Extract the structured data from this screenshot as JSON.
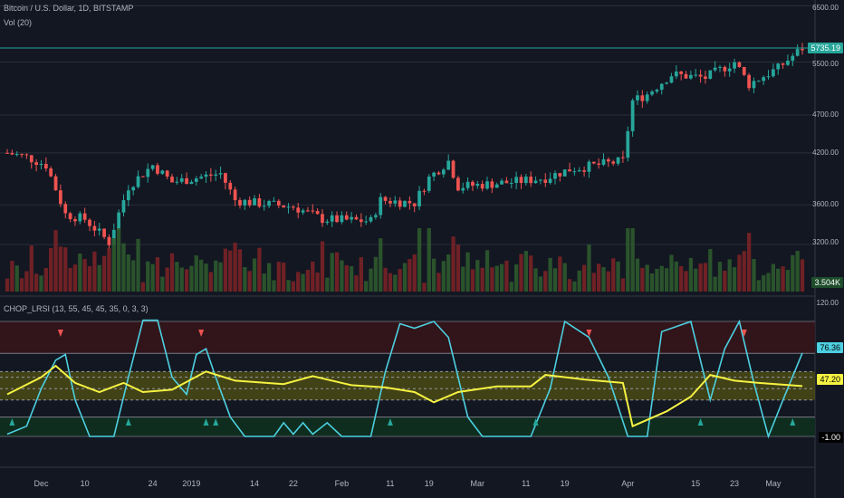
{
  "header": {
    "symbol_title": "Bitcoin / U.S. Dollar, 1D, BITSTAMP",
    "volume_label": "Vol (20)",
    "indicator_label": "CHOP_LRSI (13, 55, 45, 45, 35, 0, 3, 3)"
  },
  "price_axis": {
    "ticks": [
      "6500.00",
      "5500.00",
      "4700.00",
      "4200.00",
      "3600.00",
      "3200.00"
    ],
    "last_price": "5735.19",
    "volume_value": "3.504K"
  },
  "indicator_axis": {
    "ticks": [
      "120.00",
      "-1.00"
    ],
    "cyan_value": "76.36",
    "yellow_value": "47.20"
  },
  "x_axis": {
    "labels": [
      "Dec",
      "10",
      "24",
      "2019",
      "14",
      "22",
      "Feb",
      "11",
      "19",
      "Mar",
      "11",
      "19",
      "Apr",
      "15",
      "23",
      "May"
    ]
  },
  "colors": {
    "background": "#131722",
    "up": "#26a69a",
    "down": "#ef5350",
    "cyan": "#4dd0e1",
    "yellow": "#f5f242",
    "overbought_band": "#3a1519",
    "oversold_band": "#10301e",
    "mid_band": "#4a4a14"
  },
  "chart_data": [
    {
      "type": "candlestick",
      "title": "Bitcoin / U.S. Dollar, 1D, BITSTAMP",
      "ylim": [
        3000,
        6600
      ],
      "y_scale": "log",
      "x_start": "2018-11-24",
      "x_end": "2019-05-07",
      "x_ticks": [
        "Dec",
        "10",
        "24",
        "2019",
        "14",
        "22",
        "Feb",
        "11",
        "19",
        "Mar",
        "11",
        "19",
        "Apr",
        "15",
        "23",
        "May"
      ],
      "y_ticks": [
        3200,
        3600,
        4200,
        4700,
        5500,
        6500
      ],
      "last_price": 5735.19,
      "close_anchors": [
        {
          "date": "2018-11-24",
          "close": 4200
        },
        {
          "date": "2018-11-28",
          "close": 4150
        },
        {
          "date": "2018-12-02",
          "close": 4050
        },
        {
          "date": "2018-12-06",
          "close": 3500
        },
        {
          "date": "2018-12-10",
          "close": 3450
        },
        {
          "date": "2018-12-15",
          "close": 3220
        },
        {
          "date": "2018-12-19",
          "close": 3800
        },
        {
          "date": "2018-12-24",
          "close": 4050
        },
        {
          "date": "2018-12-28",
          "close": 3850
        },
        {
          "date": "2019-01-02",
          "close": 3900
        },
        {
          "date": "2019-01-07",
          "close": 3950
        },
        {
          "date": "2019-01-10",
          "close": 3650
        },
        {
          "date": "2019-01-14",
          "close": 3620
        },
        {
          "date": "2019-01-22",
          "close": 3580
        },
        {
          "date": "2019-01-28",
          "close": 3450
        },
        {
          "date": "2019-02-07",
          "close": 3430
        },
        {
          "date": "2019-02-09",
          "close": 3650
        },
        {
          "date": "2019-02-16",
          "close": 3620
        },
        {
          "date": "2019-02-19",
          "close": 3900
        },
        {
          "date": "2019-02-23",
          "close": 4100
        },
        {
          "date": "2019-02-25",
          "close": 3800
        },
        {
          "date": "2019-03-08",
          "close": 3850
        },
        {
          "date": "2019-03-15",
          "close": 3900
        },
        {
          "date": "2019-03-20",
          "close": 4000
        },
        {
          "date": "2019-03-31",
          "close": 4100
        },
        {
          "date": "2019-04-02",
          "close": 4900
        },
        {
          "date": "2019-04-05",
          "close": 5000
        },
        {
          "date": "2019-04-10",
          "close": 5300
        },
        {
          "date": "2019-04-17",
          "close": 5250
        },
        {
          "date": "2019-04-23",
          "close": 5500
        },
        {
          "date": "2019-04-26",
          "close": 5150
        },
        {
          "date": "2019-05-02",
          "close": 5400
        },
        {
          "date": "2019-05-07",
          "close": 5735.19
        }
      ]
    },
    {
      "type": "bar",
      "title": "Vol (20)",
      "last_value": "3.504K"
    },
    {
      "type": "line",
      "title": "CHOP_LRSI (13, 55, 45, 45, 35, 0, 3, 3)",
      "ylim": [
        -1,
        120
      ],
      "levels": [
        100,
        76.36,
        60,
        55,
        45,
        35,
        20
      ],
      "series": [
        {
          "name": "CHOP",
          "color": "#4dd0e1",
          "last": 76.36,
          "points": [
            {
              "date": "2018-11-24",
              "v": 5
            },
            {
              "date": "2018-11-28",
              "v": 12
            },
            {
              "date": "2018-12-01",
              "v": 45
            },
            {
              "date": "2018-12-04",
              "v": 70
            },
            {
              "date": "2018-12-06",
              "v": 75
            },
            {
              "date": "2018-12-08",
              "v": 35
            },
            {
              "date": "2018-12-11",
              "v": 3
            },
            {
              "date": "2018-12-16",
              "v": 3
            },
            {
              "date": "2018-12-19",
              "v": 55
            },
            {
              "date": "2018-12-22",
              "v": 105
            },
            {
              "date": "2018-12-25",
              "v": 105
            },
            {
              "date": "2018-12-28",
              "v": 55
            },
            {
              "date": "2018-12-31",
              "v": 40
            },
            {
              "date": "2019-01-02",
              "v": 75
            },
            {
              "date": "2019-01-04",
              "v": 80
            },
            {
              "date": "2019-01-06",
              "v": 55
            },
            {
              "date": "2019-01-09",
              "v": 20
            },
            {
              "date": "2019-01-12",
              "v": 3
            },
            {
              "date": "2019-01-18",
              "v": 3
            },
            {
              "date": "2019-01-20",
              "v": 15
            },
            {
              "date": "2019-01-22",
              "v": 5
            },
            {
              "date": "2019-01-24",
              "v": 15
            },
            {
              "date": "2019-01-26",
              "v": 5
            },
            {
              "date": "2019-01-29",
              "v": 15
            },
            {
              "date": "2019-02-01",
              "v": 3
            },
            {
              "date": "2019-02-07",
              "v": 3
            },
            {
              "date": "2019-02-10",
              "v": 60
            },
            {
              "date": "2019-02-13",
              "v": 102
            },
            {
              "date": "2019-02-16",
              "v": 98
            },
            {
              "date": "2019-02-20",
              "v": 104
            },
            {
              "date": "2019-02-23",
              "v": 90
            },
            {
              "date": "2019-02-27",
              "v": 20
            },
            {
              "date": "2019-03-02",
              "v": 3
            },
            {
              "date": "2019-03-12",
              "v": 3
            },
            {
              "date": "2019-03-16",
              "v": 45
            },
            {
              "date": "2019-03-19",
              "v": 104
            },
            {
              "date": "2019-03-24",
              "v": 90
            },
            {
              "date": "2019-03-28",
              "v": 55
            },
            {
              "date": "2019-04-01",
              "v": 3
            },
            {
              "date": "2019-04-05",
              "v": 3
            },
            {
              "date": "2019-04-08",
              "v": 95
            },
            {
              "date": "2019-04-14",
              "v": 104
            },
            {
              "date": "2019-04-18",
              "v": 35
            },
            {
              "date": "2019-04-21",
              "v": 80
            },
            {
              "date": "2019-04-24",
              "v": 104
            },
            {
              "date": "2019-04-27",
              "v": 50
            },
            {
              "date": "2019-04-30",
              "v": 3
            },
            {
              "date": "2019-05-03",
              "v": 35
            },
            {
              "date": "2019-05-07",
              "v": 76.36
            }
          ]
        },
        {
          "name": "LRSI",
          "color": "#f5f242",
          "last": 47.2,
          "points": [
            {
              "date": "2018-11-24",
              "v": 40
            },
            {
              "date": "2018-12-01",
              "v": 55
            },
            {
              "date": "2018-12-04",
              "v": 65
            },
            {
              "date": "2018-12-08",
              "v": 50
            },
            {
              "date": "2018-12-13",
              "v": 42
            },
            {
              "date": "2018-12-18",
              "v": 50
            },
            {
              "date": "2018-12-22",
              "v": 42
            },
            {
              "date": "2018-12-28",
              "v": 44
            },
            {
              "date": "2019-01-04",
              "v": 60
            },
            {
              "date": "2019-01-10",
              "v": 52
            },
            {
              "date": "2019-01-20",
              "v": 49
            },
            {
              "date": "2019-01-26",
              "v": 56
            },
            {
              "date": "2019-02-03",
              "v": 48
            },
            {
              "date": "2019-02-10",
              "v": 46
            },
            {
              "date": "2019-02-16",
              "v": 42
            },
            {
              "date": "2019-02-20",
              "v": 33
            },
            {
              "date": "2019-02-25",
              "v": 42
            },
            {
              "date": "2019-03-05",
              "v": 47
            },
            {
              "date": "2019-03-12",
              "v": 47
            },
            {
              "date": "2019-03-15",
              "v": 57
            },
            {
              "date": "2019-03-23",
              "v": 53
            },
            {
              "date": "2019-03-31",
              "v": 50
            },
            {
              "date": "2019-04-02",
              "v": 12
            },
            {
              "date": "2019-04-09",
              "v": 25
            },
            {
              "date": "2019-04-14",
              "v": 38
            },
            {
              "date": "2019-04-18",
              "v": 57
            },
            {
              "date": "2019-04-23",
              "v": 52
            },
            {
              "date": "2019-04-28",
              "v": 50
            },
            {
              "date": "2019-05-07",
              "v": 47.2
            }
          ]
        }
      ],
      "arrows_up": [
        "2018-11-25",
        "2018-12-19",
        "2019-01-04",
        "2019-01-06",
        "2019-02-11",
        "2019-03-13",
        "2019-04-16",
        "2019-05-05"
      ],
      "arrows_down": [
        "2018-12-05",
        "2019-01-03",
        "2019-03-24",
        "2019-04-25"
      ]
    }
  ]
}
